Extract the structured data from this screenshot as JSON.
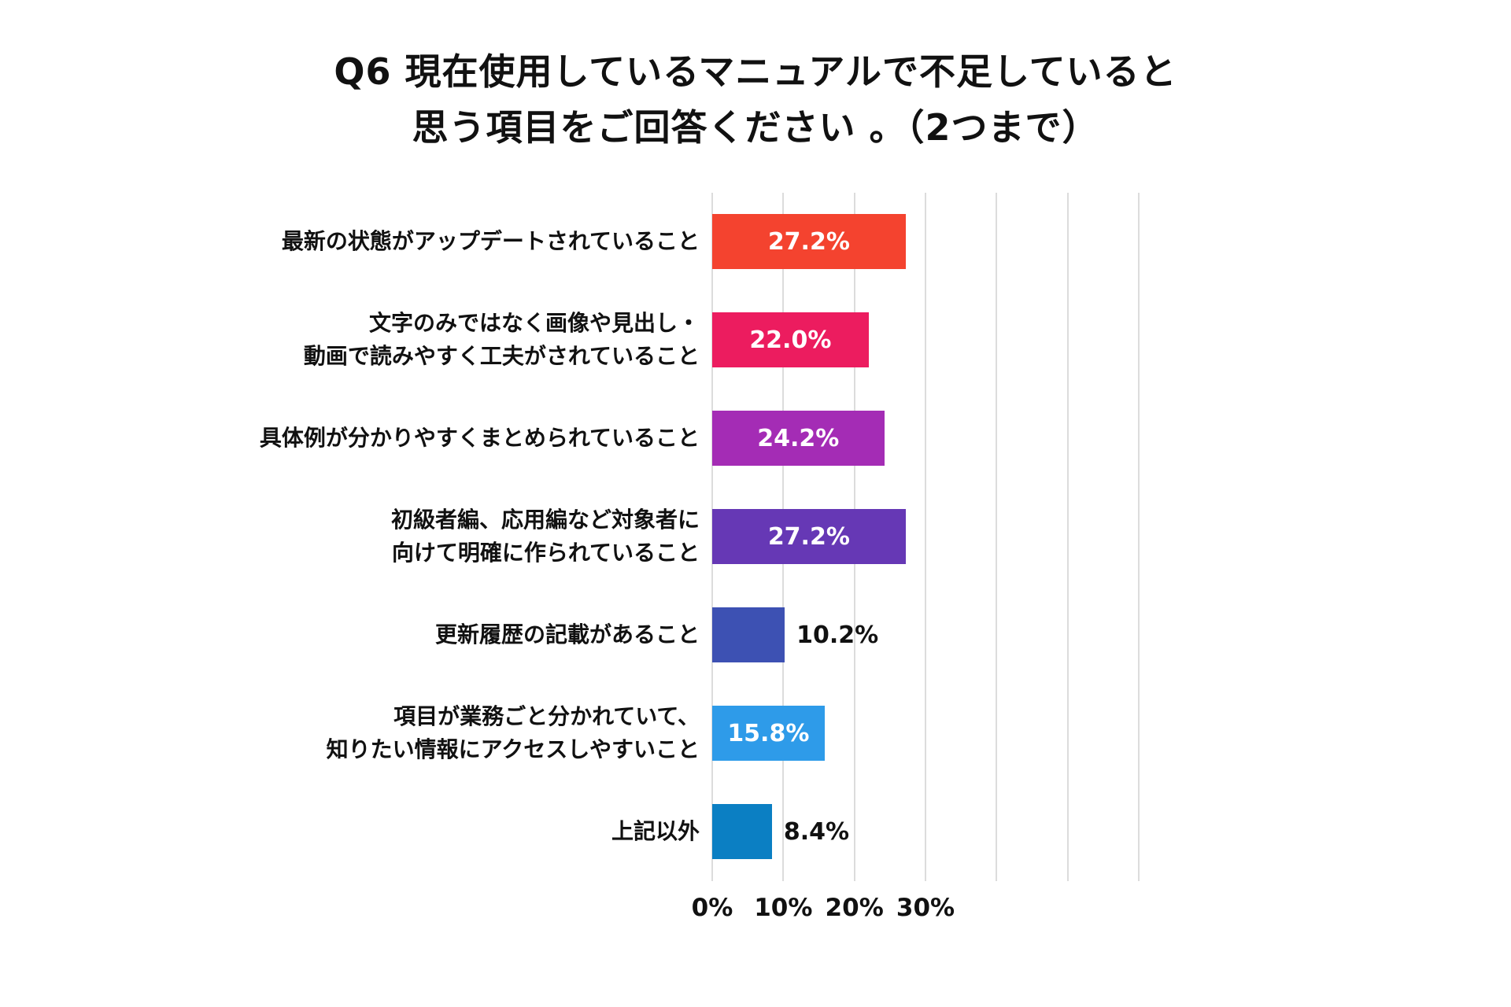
{
  "chart_data": {
    "type": "bar",
    "orientation": "horizontal",
    "title": "Q6 現在使用しているマニュアルで不足していると 思う項目をご回答ください 。（2つまで）",
    "title_lines": [
      "Q6 現在使用しているマニュアルで不足していると",
      "思う項目をご回答ください 。（2つまで）"
    ],
    "categories": [
      "最新の状態がアップデートされていること",
      "文字のみではなく画像や見出し・\n動画で読みやすく工夫がされていること",
      "具体例が分かりやすくまとめられていること",
      "初級者編、応用編など対象者に\n向けて明確に作られていること",
      "更新履歴の記載があること",
      "項目が業務ごと分かれていて、\n知りたい情報にアクセスしやすいこと",
      "上記以外"
    ],
    "values": [
      27.2,
      22.0,
      24.2,
      27.2,
      10.2,
      15.8,
      8.4
    ],
    "value_labels": [
      "27.2%",
      "22.0%",
      "24.2%",
      "27.2%",
      "10.2%",
      "15.8%",
      "8.4%"
    ],
    "label_inside": [
      true,
      true,
      true,
      true,
      false,
      true,
      false
    ],
    "bar_colors": [
      "#F4432F",
      "#EC1C5F",
      "#A42CB5",
      "#6638B5",
      "#3D51B3",
      "#2E9BE9",
      "#0B7FC3"
    ],
    "xlabel": "",
    "ylabel": "",
    "xlim": [
      0,
      60
    ],
    "x_ticks": [
      "0%",
      "10%",
      "20%",
      "30%"
    ],
    "x_tick_percents": [
      0,
      10,
      20,
      30
    ],
    "gridline_percents": [
      0,
      10,
      20,
      30,
      40,
      50,
      60
    ],
    "grid": true,
    "legend": false,
    "background_color": "#ffffff",
    "text_color": "#111111",
    "gridline_color": "#dcdcdc"
  }
}
